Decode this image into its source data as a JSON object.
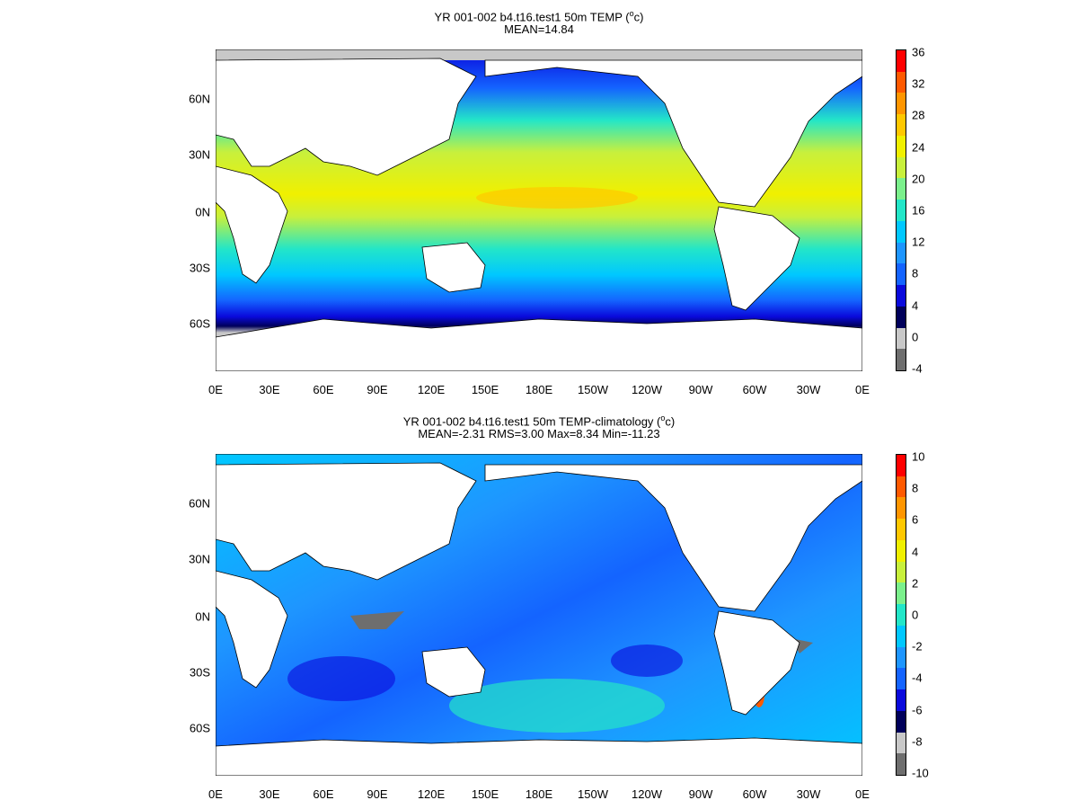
{
  "panels": [
    {
      "title_line1": "YR 001-002 b4.t16.test1 50m TEMP (",
      "title_sup": "o",
      "title_tail": "c)",
      "title_line2": "MEAN=14.84",
      "colorbar": {
        "labels": [
          "36",
          "32",
          "28",
          "24",
          "20",
          "16",
          "12",
          "8",
          "4",
          "0",
          "-4"
        ],
        "colors": [
          "#6e6e6e",
          "#c8c8c8",
          "#00005a",
          "#0a0adc",
          "#1464ff",
          "#1e96ff",
          "#00c8ff",
          "#23e6c8",
          "#7bf08c",
          "#c8f03c",
          "#f0f000",
          "#ffc800",
          "#ff9600",
          "#ff5a00",
          "#ff0000"
        ]
      }
    },
    {
      "title_line1": "YR 001-002 b4.t16.test1 50m TEMP-climatology (",
      "title_sup": "o",
      "title_tail": "c)",
      "title_line2": "MEAN=-2.31   RMS=3.00   Max=8.34   Min=-11.23",
      "colorbar": {
        "labels": [
          "10",
          "8",
          "6",
          "4",
          "2",
          "0",
          "-2",
          "-4",
          "-6",
          "-8",
          "-10"
        ],
        "colors": [
          "#6e6e6e",
          "#c8c8c8",
          "#00005a",
          "#0a0adc",
          "#1464ff",
          "#1e96ff",
          "#00c8ff",
          "#23e6c8",
          "#7bf08c",
          "#c8f03c",
          "#f0f000",
          "#ffc800",
          "#ff9600",
          "#ff5a00",
          "#ff0000"
        ]
      }
    }
  ],
  "lat_labels": [
    "60N",
    "30N",
    "0N",
    "30S",
    "60S"
  ],
  "lon_labels": [
    "0E",
    "30E",
    "60E",
    "90E",
    "120E",
    "150E",
    "180E",
    "150W",
    "120W",
    "90W",
    "60W",
    "30W",
    "0E"
  ]
}
